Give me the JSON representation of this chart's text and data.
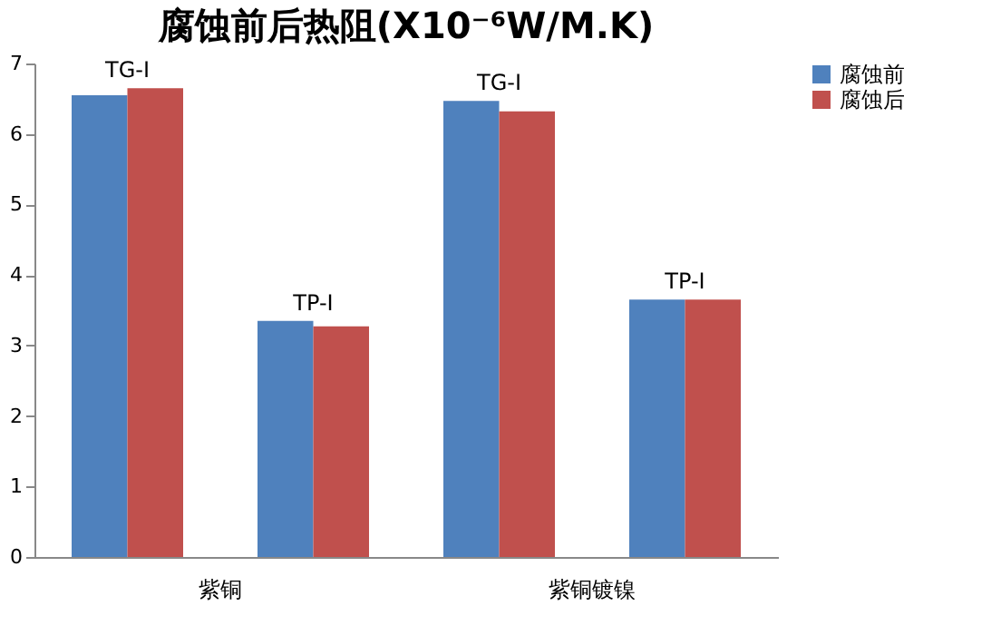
{
  "chart_data": {
    "type": "bar",
    "title": "腐蚀前后热阻(X10⁻⁶W/M.K)",
    "categories": [
      "TG-I",
      "TP-I",
      "TG-I",
      "TP-I"
    ],
    "series": [
      {
        "name": "腐蚀前",
        "color": "#4f81bd",
        "values": [
          6.55,
          3.35,
          6.47,
          3.65
        ]
      },
      {
        "name": "腐蚀后",
        "color": "#c0504d",
        "values": [
          6.65,
          3.27,
          6.32,
          3.65
        ]
      }
    ],
    "annotations": [
      "紫铜",
      "紫铜镀镍"
    ],
    "ylim": [
      0,
      7
    ],
    "yticks": [
      0,
      1,
      2,
      3,
      4,
      5,
      6,
      7
    ],
    "grid": false,
    "legend": "right"
  }
}
